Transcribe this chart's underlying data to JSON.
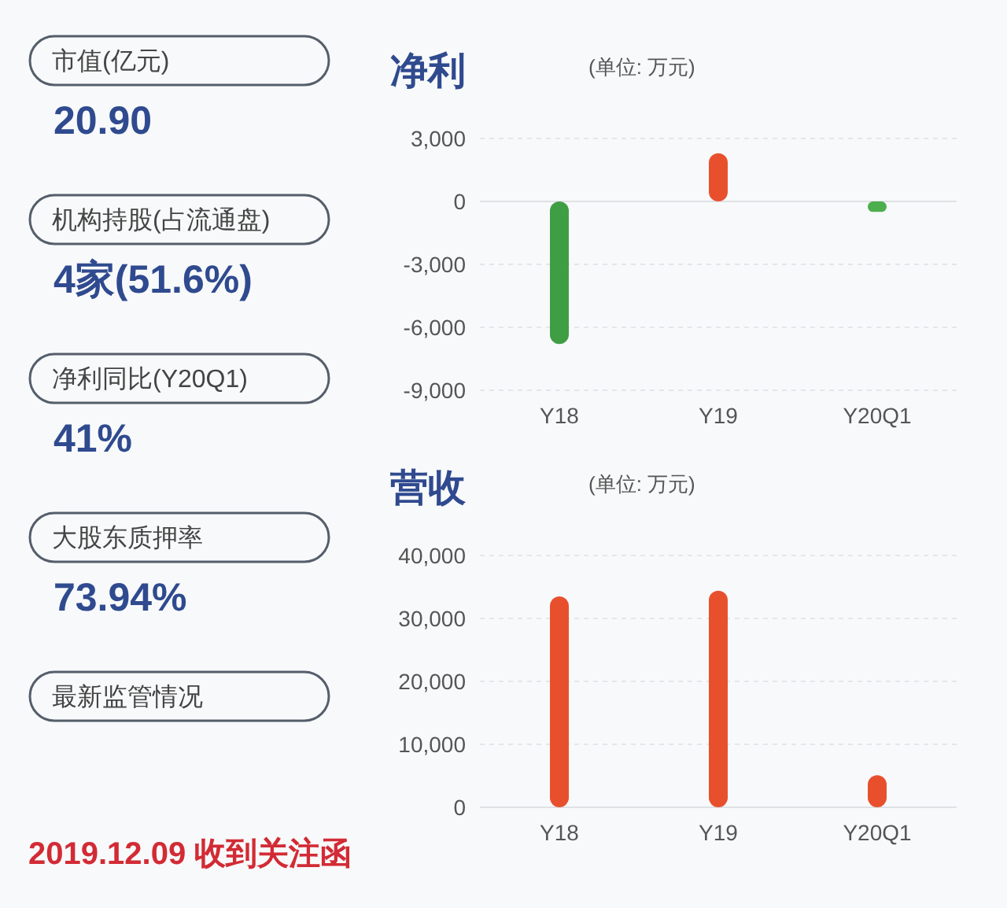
{
  "chart_data": [
    {
      "type": "other",
      "annotations": [
        "市值(亿元)",
        "20.90",
        "机构持股(占流通盘)",
        "4家(51.6%)",
        "净利同比(Y20Q1)",
        "41%",
        "大股东质押率",
        "73.94%",
        "最新监管情况",
        "2019.12.09 收到关注函"
      ]
    },
    {
      "type": "bar",
      "title": "净利",
      "subtitle": "(单位: 万元)",
      "categories": [
        "Y18",
        "Y19",
        "Y20Q1"
      ],
      "values": [
        -6800,
        2300,
        -500
      ],
      "colors": [
        "#3f9e44",
        "#e8502d",
        "#4cae4c"
      ],
      "ylim": [
        -9000,
        3000
      ],
      "yticks": [
        {
          "value": -9000,
          "label": "-9,000"
        },
        {
          "value": -6000,
          "label": "-6,000"
        },
        {
          "value": -3000,
          "label": "-3,000"
        },
        0,
        {
          "value": 3000,
          "label": "3,000"
        }
      ],
      "grid": "y"
    },
    {
      "type": "bar",
      "title": "营收",
      "subtitle": "(单位: 万元)",
      "categories": [
        "Y18",
        "Y19",
        "Y20Q1"
      ],
      "values": [
        33500,
        34400,
        5100
      ],
      "colors": [
        "#e8502d",
        "#e8502d",
        "#e8502d"
      ],
      "ylim": [
        0,
        40000
      ],
      "yticks": [
        0,
        {
          "value": 10000,
          "label": "10,000"
        },
        {
          "value": 20000,
          "label": "20,000"
        },
        {
          "value": 30000,
          "label": "30,000"
        },
        {
          "value": 40000,
          "label": "40,000"
        }
      ],
      "grid": "y"
    }
  ]
}
